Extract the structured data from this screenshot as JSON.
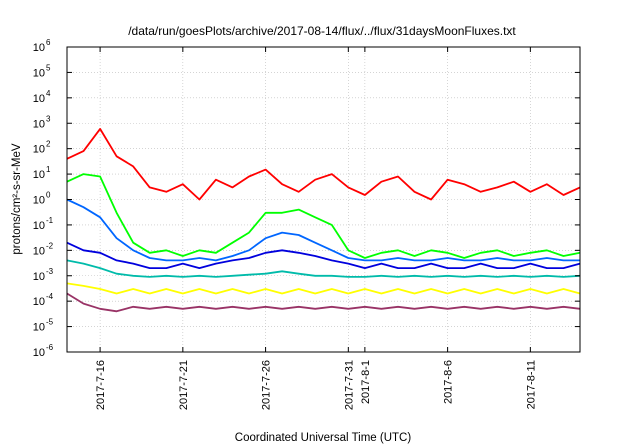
{
  "chart_data": {
    "type": "line",
    "title": "/data/run/goesPlots/archive/2017-08-14/flux/../flux/31daysMoonFluxes.txt",
    "xlabel": "Coordinated Universal Time (UTC)",
    "ylabel": "protons/cm²-s-sr-MeV",
    "y_scale": "log",
    "ylim": [
      1e-06,
      1000000.0
    ],
    "xlim": [
      "2017-07-14",
      "2017-08-14"
    ],
    "grid": true,
    "y_ticks": [
      {
        "base": "10",
        "exp": "-6",
        "value": 1e-06
      },
      {
        "base": "10",
        "exp": "-5",
        "value": 1e-05
      },
      {
        "base": "10",
        "exp": "-4",
        "value": 0.0001
      },
      {
        "base": "10",
        "exp": "-3",
        "value": 0.001
      },
      {
        "base": "10",
        "exp": "-2",
        "value": 0.01
      },
      {
        "base": "10",
        "exp": "-1",
        "value": 0.1
      },
      {
        "base": "10",
        "exp": "0",
        "value": 1
      },
      {
        "base": "10",
        "exp": "1",
        "value": 10
      },
      {
        "base": "10",
        "exp": "2",
        "value": 100
      },
      {
        "base": "10",
        "exp": "3",
        "value": 1000
      },
      {
        "base": "10",
        "exp": "4",
        "value": 10000
      },
      {
        "base": "10",
        "exp": "5",
        "value": 100000
      },
      {
        "base": "10",
        "exp": "6",
        "value": 1000000
      }
    ],
    "x_ticks": [
      {
        "label": "2017-7-16",
        "date": "2017-07-16"
      },
      {
        "label": "2017-7-21",
        "date": "2017-07-21"
      },
      {
        "label": "2017-7-26",
        "date": "2017-07-26"
      },
      {
        "label": "2017-7-31",
        "date": "2017-07-31"
      },
      {
        "label": "2017-8-1",
        "date": "2017-08-01"
      },
      {
        "label": "2017-8-6",
        "date": "2017-08-06"
      },
      {
        "label": "2017-8-11",
        "date": "2017-08-11"
      }
    ],
    "series": [
      {
        "color": "#ff0000",
        "x": [
          "2017-07-14",
          "2017-07-15",
          "2017-07-16",
          "2017-07-17",
          "2017-07-18",
          "2017-07-19",
          "2017-07-20",
          "2017-07-21",
          "2017-07-22",
          "2017-07-23",
          "2017-07-24",
          "2017-07-25",
          "2017-07-26",
          "2017-07-27",
          "2017-07-28",
          "2017-07-29",
          "2017-07-30",
          "2017-07-31",
          "2017-08-01",
          "2017-08-02",
          "2017-08-03",
          "2017-08-04",
          "2017-08-05",
          "2017-08-06",
          "2017-08-07",
          "2017-08-08",
          "2017-08-09",
          "2017-08-10",
          "2017-08-11",
          "2017-08-12",
          "2017-08-13",
          "2017-08-14"
        ],
        "values": [
          40,
          80,
          600,
          50,
          20,
          3,
          2,
          4,
          1,
          6,
          3,
          8,
          15,
          4,
          2,
          6,
          10,
          3,
          1.5,
          5,
          8,
          2,
          1,
          6,
          4,
          2,
          3,
          5,
          2,
          4,
          1.5,
          3
        ]
      },
      {
        "color": "#00ff00",
        "x": [
          "2017-07-14",
          "2017-07-15",
          "2017-07-16",
          "2017-07-17",
          "2017-07-18",
          "2017-07-19",
          "2017-07-20",
          "2017-07-21",
          "2017-07-22",
          "2017-07-23",
          "2017-07-24",
          "2017-07-25",
          "2017-07-26",
          "2017-07-27",
          "2017-07-28",
          "2017-07-29",
          "2017-07-30",
          "2017-07-31",
          "2017-08-01",
          "2017-08-02",
          "2017-08-03",
          "2017-08-04",
          "2017-08-05",
          "2017-08-06",
          "2017-08-07",
          "2017-08-08",
          "2017-08-09",
          "2017-08-10",
          "2017-08-11",
          "2017-08-12",
          "2017-08-13",
          "2017-08-14"
        ],
        "values": [
          5,
          10,
          8,
          0.3,
          0.02,
          0.008,
          0.01,
          0.006,
          0.01,
          0.008,
          0.02,
          0.05,
          0.3,
          0.3,
          0.4,
          0.2,
          0.1,
          0.01,
          0.005,
          0.008,
          0.01,
          0.006,
          0.01,
          0.008,
          0.005,
          0.008,
          0.01,
          0.006,
          0.008,
          0.01,
          0.006,
          0.008
        ]
      },
      {
        "color": "#0066ff",
        "x": [
          "2017-07-14",
          "2017-07-15",
          "2017-07-16",
          "2017-07-17",
          "2017-07-18",
          "2017-07-19",
          "2017-07-20",
          "2017-07-21",
          "2017-07-22",
          "2017-07-23",
          "2017-07-24",
          "2017-07-25",
          "2017-07-26",
          "2017-07-27",
          "2017-07-28",
          "2017-07-29",
          "2017-07-30",
          "2017-07-31",
          "2017-08-01",
          "2017-08-02",
          "2017-08-03",
          "2017-08-04",
          "2017-08-05",
          "2017-08-06",
          "2017-08-07",
          "2017-08-08",
          "2017-08-09",
          "2017-08-10",
          "2017-08-11",
          "2017-08-12",
          "2017-08-13",
          "2017-08-14"
        ],
        "values": [
          1,
          0.5,
          0.2,
          0.03,
          0.01,
          0.005,
          0.004,
          0.004,
          0.005,
          0.004,
          0.006,
          0.01,
          0.03,
          0.05,
          0.04,
          0.02,
          0.01,
          0.005,
          0.004,
          0.004,
          0.005,
          0.004,
          0.004,
          0.005,
          0.004,
          0.004,
          0.005,
          0.004,
          0.004,
          0.005,
          0.004,
          0.004
        ]
      },
      {
        "color": "#0000dd",
        "x": [
          "2017-07-14",
          "2017-07-15",
          "2017-07-16",
          "2017-07-17",
          "2017-07-18",
          "2017-07-19",
          "2017-07-20",
          "2017-07-21",
          "2017-07-22",
          "2017-07-23",
          "2017-07-24",
          "2017-07-25",
          "2017-07-26",
          "2017-07-27",
          "2017-07-28",
          "2017-07-29",
          "2017-07-30",
          "2017-07-31",
          "2017-08-01",
          "2017-08-02",
          "2017-08-03",
          "2017-08-04",
          "2017-08-05",
          "2017-08-06",
          "2017-08-07",
          "2017-08-08",
          "2017-08-09",
          "2017-08-10",
          "2017-08-11",
          "2017-08-12",
          "2017-08-13",
          "2017-08-14"
        ],
        "values": [
          0.02,
          0.01,
          0.008,
          0.004,
          0.003,
          0.002,
          0.002,
          0.003,
          0.002,
          0.003,
          0.004,
          0.005,
          0.008,
          0.01,
          0.008,
          0.006,
          0.004,
          0.003,
          0.002,
          0.003,
          0.002,
          0.002,
          0.003,
          0.002,
          0.002,
          0.003,
          0.002,
          0.002,
          0.003,
          0.002,
          0.002,
          0.003
        ]
      },
      {
        "color": "#00bbaa",
        "x": [
          "2017-07-14",
          "2017-07-15",
          "2017-07-16",
          "2017-07-17",
          "2017-07-18",
          "2017-07-19",
          "2017-07-20",
          "2017-07-21",
          "2017-07-22",
          "2017-07-23",
          "2017-07-24",
          "2017-07-25",
          "2017-07-26",
          "2017-07-27",
          "2017-07-28",
          "2017-07-29",
          "2017-07-30",
          "2017-07-31",
          "2017-08-01",
          "2017-08-02",
          "2017-08-03",
          "2017-08-04",
          "2017-08-05",
          "2017-08-06",
          "2017-08-07",
          "2017-08-08",
          "2017-08-09",
          "2017-08-10",
          "2017-08-11",
          "2017-08-12",
          "2017-08-13",
          "2017-08-14"
        ],
        "values": [
          0.004,
          0.003,
          0.002,
          0.0012,
          0.001,
          0.0009,
          0.001,
          0.0009,
          0.001,
          0.0009,
          0.001,
          0.0011,
          0.0012,
          0.0015,
          0.0012,
          0.001,
          0.001,
          0.0009,
          0.0009,
          0.001,
          0.0009,
          0.001,
          0.0009,
          0.001,
          0.0009,
          0.001,
          0.0009,
          0.001,
          0.0009,
          0.001,
          0.0009,
          0.001
        ]
      },
      {
        "color": "#ffff00",
        "x": [
          "2017-07-14",
          "2017-07-15",
          "2017-07-16",
          "2017-07-17",
          "2017-07-18",
          "2017-07-19",
          "2017-07-20",
          "2017-07-21",
          "2017-07-22",
          "2017-07-23",
          "2017-07-24",
          "2017-07-25",
          "2017-07-26",
          "2017-07-27",
          "2017-07-28",
          "2017-07-29",
          "2017-07-30",
          "2017-07-31",
          "2017-08-01",
          "2017-08-02",
          "2017-08-03",
          "2017-08-04",
          "2017-08-05",
          "2017-08-06",
          "2017-08-07",
          "2017-08-08",
          "2017-08-09",
          "2017-08-10",
          "2017-08-11",
          "2017-08-12",
          "2017-08-13",
          "2017-08-14"
        ],
        "values": [
          0.0005,
          0.0004,
          0.0003,
          0.0002,
          0.0003,
          0.0002,
          0.0003,
          0.0002,
          0.0003,
          0.0002,
          0.0003,
          0.0002,
          0.0003,
          0.0002,
          0.0003,
          0.0002,
          0.0003,
          0.0002,
          0.0003,
          0.0002,
          0.0003,
          0.0002,
          0.0003,
          0.0002,
          0.0003,
          0.0002,
          0.0003,
          0.0002,
          0.0003,
          0.0002,
          0.0003,
          0.0002
        ]
      },
      {
        "color": "#993366",
        "x": [
          "2017-07-14",
          "2017-07-15",
          "2017-07-16",
          "2017-07-17",
          "2017-07-18",
          "2017-07-19",
          "2017-07-20",
          "2017-07-21",
          "2017-07-22",
          "2017-07-23",
          "2017-07-24",
          "2017-07-25",
          "2017-07-26",
          "2017-07-27",
          "2017-07-28",
          "2017-07-29",
          "2017-07-30",
          "2017-07-31",
          "2017-08-01",
          "2017-08-02",
          "2017-08-03",
          "2017-08-04",
          "2017-08-05",
          "2017-08-06",
          "2017-08-07",
          "2017-08-08",
          "2017-08-09",
          "2017-08-10",
          "2017-08-11",
          "2017-08-12",
          "2017-08-13",
          "2017-08-14"
        ],
        "values": [
          0.0002,
          8e-05,
          5e-05,
          4e-05,
          6e-05,
          5e-05,
          6e-05,
          5e-05,
          6e-05,
          5e-05,
          6e-05,
          5e-05,
          6e-05,
          5e-05,
          6e-05,
          5e-05,
          6e-05,
          5e-05,
          6e-05,
          5e-05,
          6e-05,
          5e-05,
          6e-05,
          5e-05,
          6e-05,
          5e-05,
          6e-05,
          5e-05,
          6e-05,
          5e-05,
          6e-05,
          5e-05
        ]
      }
    ]
  }
}
